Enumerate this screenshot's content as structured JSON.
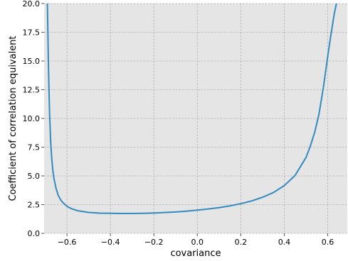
{
  "chart_data": {
    "type": "line",
    "title": "",
    "xlabel": "covariance",
    "ylabel": "Coefficient of correlation equivalent",
    "xlim": [
      -0.705,
      0.69
    ],
    "ylim": [
      0,
      20
    ],
    "grid": true,
    "legend": "none",
    "x_ticks": [
      -0.6,
      -0.4,
      -0.2,
      0.0,
      0.2,
      0.4,
      0.6
    ],
    "x_tick_labels": [
      "−0.6",
      "−0.4",
      "−0.2",
      "0.0",
      "0.2",
      "0.4",
      "0.6"
    ],
    "y_ticks": [
      0,
      2.5,
      5,
      7.5,
      10,
      12.5,
      15,
      17.5,
      20
    ],
    "y_tick_labels": [
      "0.0",
      "2.5",
      "5.0",
      "7.5",
      "10.0",
      "12.5",
      "15.0",
      "17.5",
      "20.0"
    ],
    "series": [
      {
        "x": [
          -0.69,
          -0.685,
          -0.68,
          -0.675,
          -0.67,
          -0.665,
          -0.66,
          -0.65,
          -0.64,
          -0.63,
          -0.62,
          -0.6,
          -0.58,
          -0.55,
          -0.5,
          -0.45,
          -0.4,
          -0.35,
          -0.3,
          -0.25,
          -0.2,
          -0.15,
          -0.1,
          -0.05,
          0.0,
          0.05,
          0.1,
          0.15,
          0.2,
          0.25,
          0.3,
          0.35,
          0.4,
          0.45,
          0.5,
          0.52,
          0.54,
          0.56,
          0.58,
          0.6,
          0.61,
          0.62,
          0.63,
          0.64
        ],
        "y": [
          20.0,
          14.5,
          10.5,
          8.0,
          6.5,
          5.5,
          4.8,
          3.9,
          3.3,
          2.95,
          2.7,
          2.35,
          2.15,
          1.97,
          1.82,
          1.76,
          1.74,
          1.73,
          1.73,
          1.74,
          1.77,
          1.81,
          1.86,
          1.93,
          2.02,
          2.12,
          2.24,
          2.39,
          2.58,
          2.82,
          3.14,
          3.55,
          4.15,
          5.05,
          6.6,
          7.6,
          8.8,
          10.4,
          12.7,
          15.4,
          16.7,
          17.9,
          19.1,
          20.0
        ],
        "color": "#348abd"
      }
    ]
  }
}
